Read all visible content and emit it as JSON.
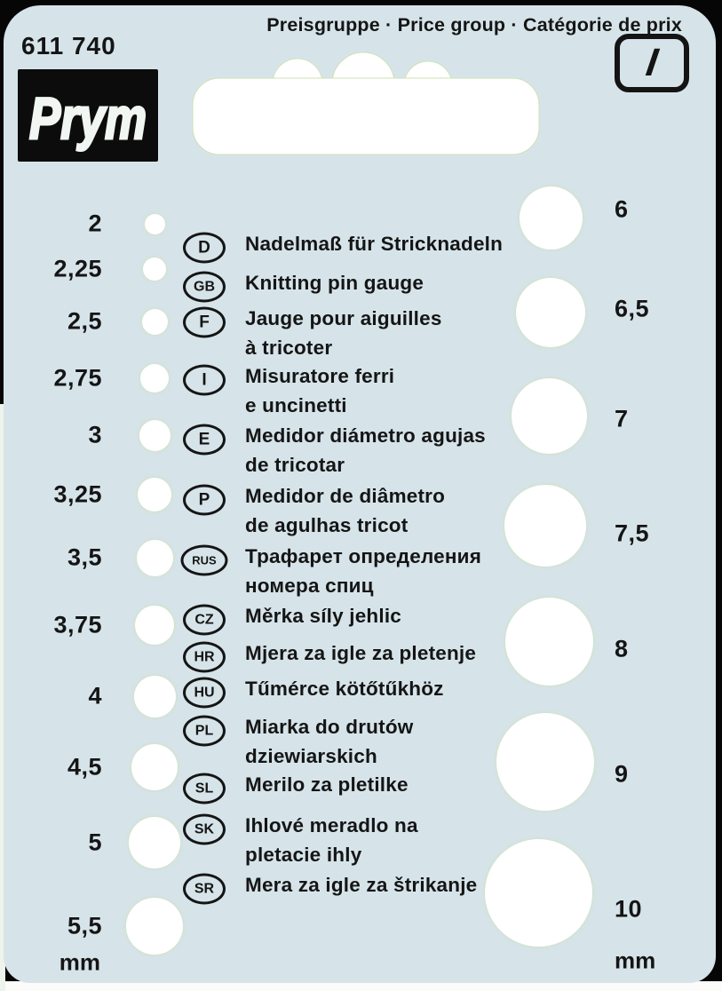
{
  "header": {
    "price_group_label": "Preisgruppe · Price group · Catégorie de prix",
    "price_group_value": "I",
    "article_number": "611 740",
    "brand": "Prym"
  },
  "gauge": {
    "left_unit": "mm",
    "right_unit": "mm",
    "left_column": [
      {
        "label": "2",
        "mm": 2
      },
      {
        "label": "2,25",
        "mm": 2.25
      },
      {
        "label": "2,5",
        "mm": 2.5
      },
      {
        "label": "2,75",
        "mm": 2.75
      },
      {
        "label": "3",
        "mm": 3
      },
      {
        "label": "3,25",
        "mm": 3.25
      },
      {
        "label": "3,5",
        "mm": 3.5
      },
      {
        "label": "3,75",
        "mm": 3.75
      },
      {
        "label": "4",
        "mm": 4
      },
      {
        "label": "4,5",
        "mm": 4.5
      },
      {
        "label": "5",
        "mm": 5
      },
      {
        "label": "5,5",
        "mm": 5.5
      }
    ],
    "right_column": [
      {
        "label": "6",
        "mm": 6
      },
      {
        "label": "6,5",
        "mm": 6.5
      },
      {
        "label": "7",
        "mm": 7
      },
      {
        "label": "7,5",
        "mm": 7.5
      },
      {
        "label": "8",
        "mm": 8
      },
      {
        "label": "9",
        "mm": 9
      },
      {
        "label": "10",
        "mm": 10
      }
    ]
  },
  "languages": [
    {
      "code": "D",
      "lines": [
        "Nadelmaß für Stricknadeln"
      ]
    },
    {
      "code": "GB",
      "lines": [
        "Knitting pin gauge"
      ]
    },
    {
      "code": "F",
      "lines": [
        "Jauge pour aiguilles",
        "à tricoter"
      ]
    },
    {
      "code": "I",
      "lines": [
        "Misuratore ferri",
        "e uncinetti"
      ]
    },
    {
      "code": "E",
      "lines": [
        "Medidor diámetro agujas",
        "de tricotar"
      ]
    },
    {
      "code": "P",
      "lines": [
        "Medidor de diâmetro",
        "de agulhas tricot"
      ]
    },
    {
      "code": "RUS",
      "lines": [
        "Трафарет определения",
        "номера спиц"
      ]
    },
    {
      "code": "CZ",
      "lines": [
        "Měrka síly jehlic"
      ]
    },
    {
      "code": "HR",
      "lines": [
        "Mjera za igle za pletenje"
      ]
    },
    {
      "code": "HU",
      "lines": [
        "Tűmérce kötőtűkhöz"
      ]
    },
    {
      "code": "PL",
      "lines": [
        "Miarka do drutów",
        "dziewiarskich"
      ]
    },
    {
      "code": "SL",
      "lines": [
        "Merilo za pletilke"
      ]
    },
    {
      "code": "SK",
      "lines": [
        "Ihlové meradlo na",
        "pletacie ihly"
      ]
    },
    {
      "code": "SR",
      "lines": [
        "Mera za igle za štrikanje"
      ]
    }
  ],
  "colors": {
    "card": "#d6e4ea",
    "text": "#151515",
    "hole": "#ffffff",
    "frame": "#060606"
  }
}
